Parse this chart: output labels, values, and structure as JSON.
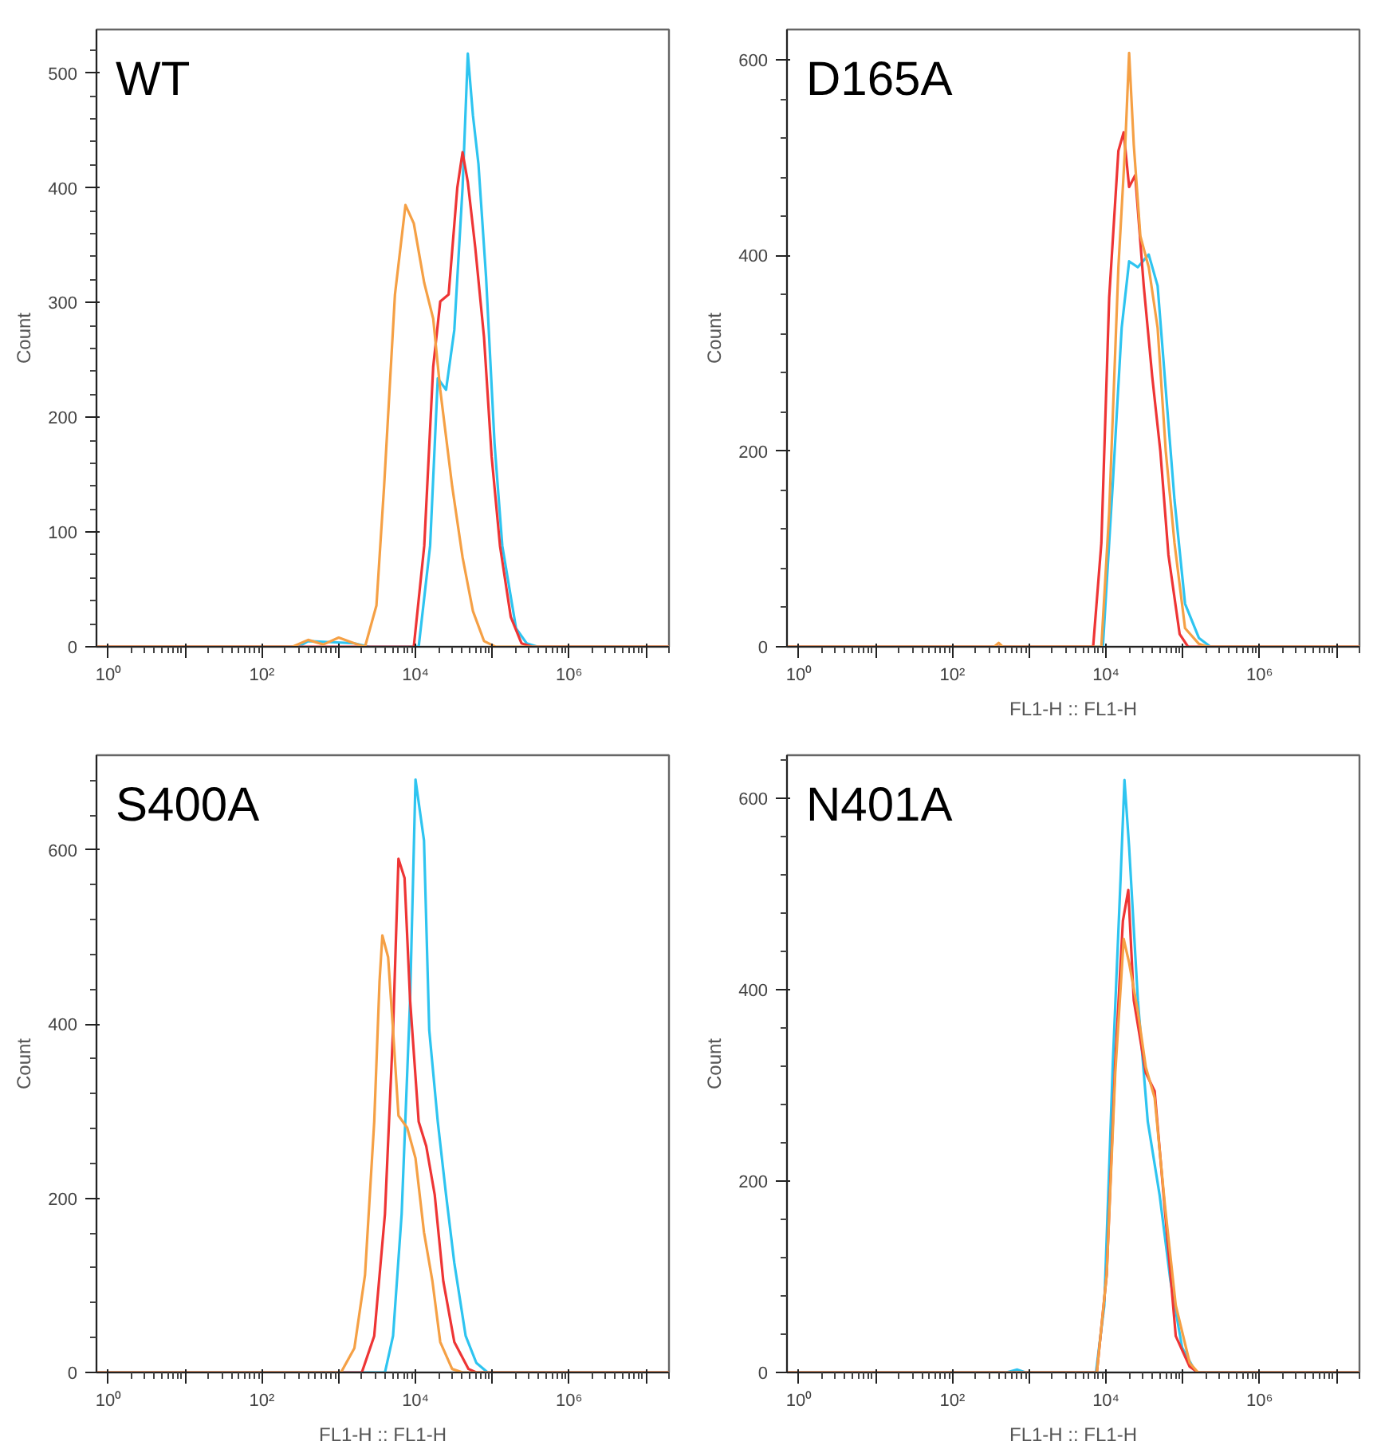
{
  "chart_data": [
    {
      "type": "line",
      "title": "WT",
      "ylabel": "Count",
      "log": "x",
      "grid": false,
      "xlim": [
        0.7,
        20000000
      ],
      "ylim": [
        0,
        538
      ],
      "xticks": [
        {
          "value": 1,
          "label": "10⁰"
        },
        {
          "value": 10,
          "label": null
        },
        {
          "value": 100,
          "label": "10²"
        },
        {
          "value": 1000,
          "label": null
        },
        {
          "value": 10000,
          "label": "10⁴"
        },
        {
          "value": 100000,
          "label": null
        },
        {
          "value": 1000000,
          "label": "10⁶"
        },
        {
          "value": 10000000,
          "label": null
        }
      ],
      "yticks": [
        0,
        100,
        200,
        300,
        400,
        500
      ],
      "series": [
        {
          "color": "#2ec4f0",
          "x": [
            0.7,
            300,
            400,
            800,
            1600,
            2500,
            11000,
            15500,
            19500,
            25000,
            32000,
            41000,
            48000,
            56000,
            66000,
            83000,
            107000,
            135000,
            204000,
            280000,
            390000,
            20000000
          ],
          "values": [
            0,
            0,
            5,
            4,
            3,
            0,
            0,
            88,
            234,
            224,
            276,
            400,
            517,
            463,
            421,
            322,
            177,
            88,
            16,
            3,
            0,
            0
          ]
        },
        {
          "color": "#ee3535",
          "x": [
            0.7,
            9500,
            13000,
            17000,
            21000,
            27000,
            35000,
            41000,
            48000,
            60000,
            78000,
            98000,
            126000,
            174000,
            240000,
            330000,
            20000000
          ],
          "values": [
            0,
            0,
            88,
            244,
            301,
            307,
            400,
            431,
            405,
            348,
            270,
            166,
            88,
            26,
            3,
            0,
            0
          ]
        },
        {
          "color": "#f5a045",
          "x": [
            0.7,
            250,
            400,
            630,
            1000,
            1600,
            2200,
            3100,
            3900,
            5400,
            7400,
            9500,
            13000,
            17000,
            21000,
            30000,
            41000,
            56000,
            78000,
            110000,
            20000000
          ],
          "values": [
            0,
            0,
            6,
            2,
            8,
            3,
            0,
            36,
            140,
            307,
            385,
            369,
            317,
            286,
            224,
            140,
            78,
            31,
            5,
            0,
            0
          ]
        }
      ]
    },
    {
      "type": "line",
      "title": "D165A",
      "xlabel": "FL1-H :: FL1-H",
      "ylabel": "Count",
      "log": "x",
      "grid": false,
      "xlim": [
        0.7,
        20000000
      ],
      "ylim": [
        0,
        631
      ],
      "xticks": [
        {
          "value": 1,
          "label": "10⁰"
        },
        {
          "value": 10,
          "label": null
        },
        {
          "value": 100,
          "label": "10²"
        },
        {
          "value": 1000,
          "label": null
        },
        {
          "value": 10000,
          "label": "10⁴"
        },
        {
          "value": 100000,
          "label": null
        },
        {
          "value": 1000000,
          "label": "10⁶"
        },
        {
          "value": 10000000,
          "label": null
        }
      ],
      "yticks": [
        0,
        200,
        400,
        600
      ],
      "series": [
        {
          "color": "#2ec4f0",
          "x": [
            0.7,
            9100,
            12300,
            16000,
            20000,
            26000,
            36000,
            47000,
            60000,
            78000,
            107000,
            162000,
            229000,
            20000000
          ],
          "values": [
            0,
            0,
            169,
            326,
            394,
            388,
            401,
            369,
            263,
            150,
            44,
            9,
            0,
            0
          ]
        },
        {
          "color": "#ee3535",
          "x": [
            0.7,
            6800,
            8700,
            11000,
            14500,
            17000,
            20000,
            24000,
            31000,
            40000,
            51000,
            65000,
            91000,
            117000,
            20000000
          ],
          "values": [
            0,
            0,
            106,
            357,
            507,
            526,
            470,
            482,
            369,
            276,
            200,
            94,
            13,
            0,
            0
          ]
        },
        {
          "color": "#f5a045",
          "x": [
            0.7,
            350,
            400,
            450,
            8700,
            11000,
            14500,
            17800,
            20000,
            23000,
            28000,
            36000,
            47000,
            60000,
            78000,
            107000,
            162000,
            209000,
            20000000
          ],
          "values": [
            0,
            0,
            4,
            0,
            0,
            138,
            388,
            513,
            607,
            513,
            420,
            388,
            326,
            200,
            106,
            19,
            3,
            0,
            0
          ]
        }
      ]
    },
    {
      "type": "line",
      "title": "S400A",
      "xlabel": "FL1-H :: FL1-H",
      "ylabel": "Count",
      "log": "x",
      "grid": false,
      "xlim": [
        0.7,
        20000000
      ],
      "ylim": [
        0,
        709
      ],
      "xticks": [
        {
          "value": 1,
          "label": "10⁰"
        },
        {
          "value": 10,
          "label": null
        },
        {
          "value": 100,
          "label": "10²"
        },
        {
          "value": 1000,
          "label": null
        },
        {
          "value": 10000,
          "label": "10⁴"
        },
        {
          "value": 100000,
          "label": null
        },
        {
          "value": 1000000,
          "label": "10⁶"
        },
        {
          "value": 10000000,
          "label": null
        }
      ],
      "yticks": [
        0,
        200,
        400,
        600
      ],
      "series": [
        {
          "color": "#2ec4f0",
          "x": [
            0.7,
            4000,
            5100,
            6600,
            8500,
            10000,
            12900,
            15100,
            19500,
            25000,
            32000,
            45000,
            62000,
            87000,
            20000000
          ],
          "values": [
            0,
            0,
            42,
            182,
            428,
            681,
            611,
            393,
            288,
            204,
            126,
            42,
            11,
            0,
            0
          ]
        },
        {
          "color": "#ee3535",
          "x": [
            0.7,
            2000,
            2900,
            4000,
            5100,
            6000,
            7200,
            8500,
            11000,
            13800,
            17800,
            23000,
            32000,
            49000,
            62000,
            20000000
          ],
          "values": [
            0,
            0,
            42,
            182,
            393,
            590,
            568,
            428,
            288,
            260,
            204,
            105,
            35,
            4,
            0,
            0
          ]
        },
        {
          "color": "#f5a045",
          "x": [
            0.7,
            1070,
            1600,
            2200,
            2900,
            3400,
            3700,
            4400,
            5100,
            6000,
            7800,
            10000,
            12900,
            16600,
            21000,
            30000,
            41000,
            20000000
          ],
          "values": [
            0,
            0,
            28,
            112,
            288,
            449,
            502,
            477,
            393,
            295,
            281,
            246,
            161,
            105,
            35,
            4,
            0,
            0
          ]
        }
      ]
    },
    {
      "type": "line",
      "title": "N401A",
      "xlabel": "FL1-H :: FL1-H",
      "ylabel": "Count",
      "log": "x",
      "grid": false,
      "xlim": [
        0.7,
        20000000
      ],
      "ylim": [
        0,
        645
      ],
      "xticks": [
        {
          "value": 1,
          "label": "10⁰"
        },
        {
          "value": 10,
          "label": null
        },
        {
          "value": 100,
          "label": "10²"
        },
        {
          "value": 1000,
          "label": null
        },
        {
          "value": 10000,
          "label": "10⁴"
        },
        {
          "value": 100000,
          "label": null
        },
        {
          "value": 1000000,
          "label": "10⁶"
        },
        {
          "value": 10000000,
          "label": null
        }
      ],
      "yticks": [
        0,
        200,
        400,
        600
      ],
      "series": [
        {
          "color": "#2ec4f0",
          "x": [
            0.7,
            500,
            700,
            900,
            7400,
            9500,
            12300,
            15500,
            17400,
            20000,
            26000,
            35000,
            50000,
            69000,
            98000,
            148000,
            20000000
          ],
          "values": [
            0,
            0,
            3,
            0,
            0,
            70,
            325,
            517,
            619,
            549,
            389,
            262,
            185,
            96,
            26,
            0,
            0
          ]
        },
        {
          "color": "#ee3535",
          "x": [
            0.7,
            7600,
            10200,
            13200,
            16600,
            19500,
            23000,
            33000,
            43000,
            59000,
            81000,
            123000,
            158000,
            20000000
          ],
          "values": [
            0,
            0,
            102,
            325,
            472,
            504,
            389,
            313,
            294,
            166,
            38,
            6,
            0,
            0
          ]
        },
        {
          "color": "#f5a045",
          "x": [
            0.7,
            7600,
            10200,
            13200,
            17000,
            20000,
            26000,
            33000,
            43000,
            59000,
            81000,
            123000,
            158000,
            20000000
          ],
          "values": [
            0,
            0,
            102,
            313,
            453,
            428,
            377,
            319,
            287,
            172,
            70,
            10,
            0,
            0
          ]
        }
      ]
    }
  ]
}
